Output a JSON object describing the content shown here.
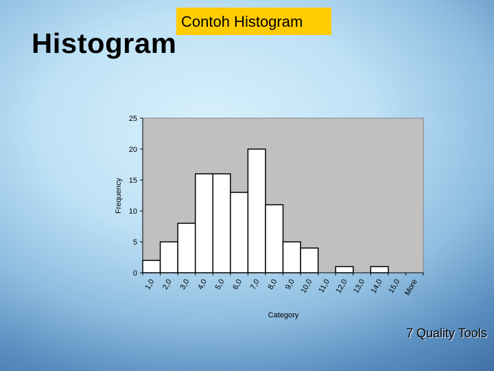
{
  "slide": {
    "tag_text": "Contoh Histogram",
    "title": "Histogram",
    "footer": "7 Quality Tools",
    "colors": {
      "tag_background": "#ffcc00",
      "plot_background": "#c0c0c0",
      "bar_fill": "#ffffff",
      "bar_stroke": "#000000"
    }
  },
  "chart_data": {
    "type": "bar",
    "title": "",
    "xlabel": "Category",
    "ylabel": "Frequency",
    "ylim": [
      0,
      25
    ],
    "yticks": [
      "0",
      "5",
      "10",
      "15",
      "20",
      "25"
    ],
    "categories": [
      "1,0",
      "2,0",
      "3,0",
      "4,0",
      "5,0",
      "6,0",
      "7,0",
      "8,0",
      "9,0",
      "10,0",
      "11,0",
      "12,0",
      "13,0",
      "14,0",
      "15,0",
      "More"
    ],
    "values": [
      2,
      5,
      8,
      16,
      16,
      13,
      20,
      11,
      5,
      4,
      0,
      1,
      0,
      1,
      0,
      0
    ],
    "grid": false,
    "legend": "none"
  }
}
